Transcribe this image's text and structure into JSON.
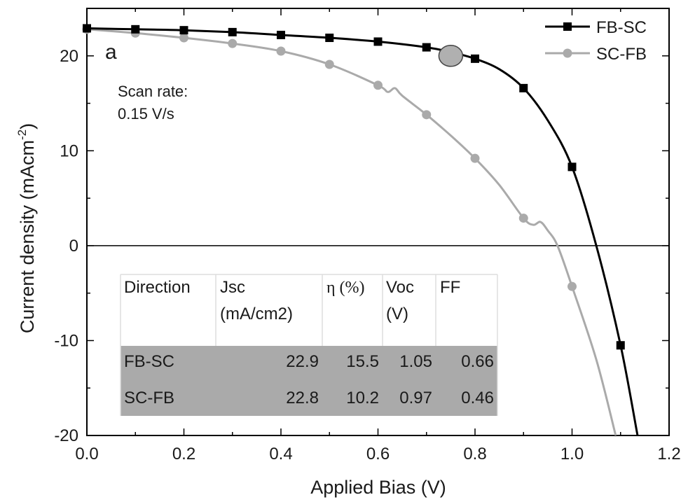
{
  "chart_data": {
    "type": "line",
    "panel_label": "a",
    "xlabel": "Applied Bias (V)",
    "ylabel": "Current density (mAcm",
    "ylabel_sup": "-2",
    "ylabel_close": ")",
    "xlim": [
      0.0,
      1.2
    ],
    "ylim": [
      -20,
      25
    ],
    "xticks": [
      0.0,
      0.2,
      0.4,
      0.6,
      0.8,
      1.0,
      1.2
    ],
    "xtick_labels": [
      "0.0",
      "0.2",
      "0.4",
      "0.6",
      "0.8",
      "1.0",
      "1.2"
    ],
    "yticks": [
      -20,
      -10,
      0,
      10,
      20
    ],
    "ytick_labels": [
      "-20",
      "-10",
      "0",
      "10",
      "20"
    ],
    "grid": false,
    "zero_line": true,
    "legend_position": "top-right",
    "annotation": [
      "Scan rate:",
      "0.15 V/s"
    ],
    "series": [
      {
        "name": "FB-SC",
        "color": "#000000",
        "marker": "square",
        "x": [
          0.0,
          0.1,
          0.2,
          0.3,
          0.4,
          0.5,
          0.6,
          0.7,
          0.8,
          0.9,
          1.0,
          1.1
        ],
        "y": [
          22.9,
          22.8,
          22.7,
          22.5,
          22.2,
          21.9,
          21.5,
          20.9,
          19.7,
          16.6,
          8.3,
          -10.5
        ],
        "curve_x": [
          0.0,
          0.1,
          0.2,
          0.3,
          0.4,
          0.5,
          0.6,
          0.7,
          0.75,
          0.8,
          0.85,
          0.9,
          0.95,
          1.0,
          1.05,
          1.1,
          1.135
        ],
        "curve_y": [
          22.9,
          22.8,
          22.7,
          22.5,
          22.2,
          21.9,
          21.5,
          20.9,
          20.4,
          19.7,
          18.6,
          16.6,
          13.2,
          8.3,
          0.0,
          -10.5,
          -20.0
        ]
      },
      {
        "name": "SC-FB",
        "color": "#aaaaaa",
        "marker": "circle",
        "x": [
          0.0,
          0.1,
          0.2,
          0.3,
          0.4,
          0.5,
          0.6,
          0.7,
          0.8,
          0.9,
          1.0
        ],
        "y": [
          22.8,
          22.4,
          21.9,
          21.3,
          20.5,
          19.1,
          16.9,
          13.8,
          9.2,
          2.9,
          -4.3
        ],
        "curve_x": [
          0.0,
          0.1,
          0.2,
          0.3,
          0.4,
          0.5,
          0.6,
          0.62,
          0.635,
          0.65,
          0.7,
          0.75,
          0.8,
          0.85,
          0.9,
          0.92,
          0.935,
          0.95,
          0.97,
          1.0,
          1.05,
          1.09
        ],
        "curve_y": [
          22.8,
          22.4,
          21.9,
          21.3,
          20.5,
          19.1,
          16.9,
          16.2,
          16.6,
          15.8,
          13.8,
          11.6,
          9.2,
          6.4,
          2.9,
          2.2,
          2.5,
          1.6,
          0.0,
          -4.3,
          -12.0,
          -20.0
        ]
      }
    ],
    "highlight_marker": {
      "x": 0.75,
      "y": 20.0,
      "color": "#b0b0b0"
    }
  },
  "table": {
    "headers": [
      {
        "line1": "Direction",
        "line2": ""
      },
      {
        "line1": "Jsc",
        "line2": "(mA/cm2)"
      },
      {
        "line1": "η (%)",
        "line2": ""
      },
      {
        "line1": "Voc",
        "line2": "(V)"
      },
      {
        "line1": "FF",
        "line2": ""
      }
    ],
    "rows": [
      {
        "direction": "FB-SC",
        "jsc": "22.9",
        "eta": "15.5",
        "voc": "1.05",
        "ff": "0.66"
      },
      {
        "direction": "SC-FB",
        "jsc": "22.8",
        "eta": "10.2",
        "voc": "0.97",
        "ff": "0.46"
      }
    ],
    "row_fill": "#aaaaaa"
  }
}
